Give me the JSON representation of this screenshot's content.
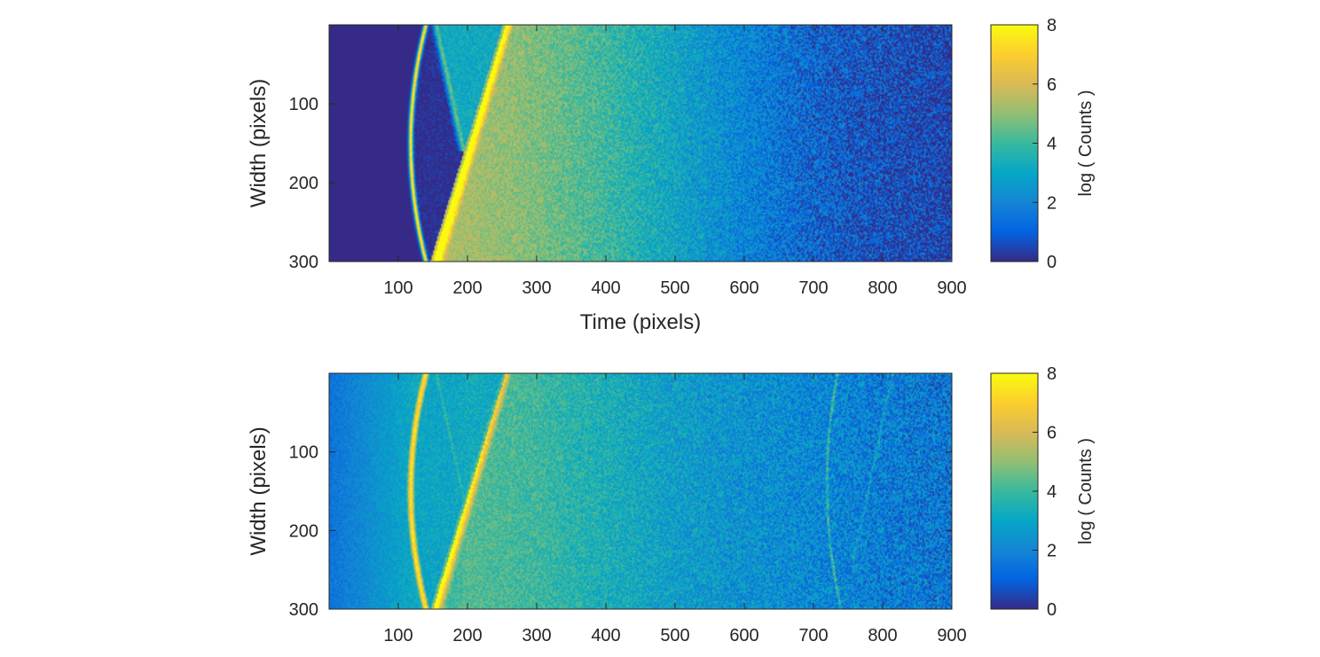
{
  "chart_data": [
    {
      "type": "heatmap",
      "title": "",
      "xlabel": "Time (pixels)",
      "ylabel": "Width (pixels)",
      "xlim": [
        0,
        900
      ],
      "ylim": [
        0,
        300
      ],
      "y_reversed": true,
      "xticks": [
        100,
        200,
        300,
        400,
        500,
        600,
        700,
        800,
        900
      ],
      "yticks": [
        100,
        200,
        300
      ],
      "colorbar": {
        "label": "log ( Counts )",
        "range": [
          0,
          8
        ],
        "ticks": [
          0,
          2,
          4,
          6,
          8
        ],
        "colormap": "parula"
      },
      "features": {
        "background_left_of_x": 120,
        "background_level": 0,
        "primary_arc": {
          "x_top": 140,
          "x_mid": 118,
          "x_bottom": 140,
          "level": 8
        },
        "rising_front": {
          "x_at_y300": 150,
          "x_at_y0": 255,
          "level": 6.3
        },
        "secondary_front": {
          "x_at_y0": 270,
          "x_at_y300": 255,
          "level": 5.2
        },
        "falling_diagonal": {
          "x_at_y0": 155,
          "x_at_y160": 195,
          "level": 4.5
        },
        "decay_levels": [
          {
            "x": 200,
            "level": 5.3
          },
          {
            "x": 300,
            "level": 4.8
          },
          {
            "x": 400,
            "level": 4.0
          },
          {
            "x": 500,
            "level": 3.0
          },
          {
            "x": 600,
            "level": 2.0
          },
          {
            "x": 700,
            "level": 1.2
          },
          {
            "x": 800,
            "level": 0.7
          },
          {
            "x": 900,
            "level": 0.4
          }
        ]
      }
    },
    {
      "type": "heatmap",
      "title": "",
      "xlabel": "",
      "ylabel": "Width (pixels)",
      "xlim": [
        0,
        900
      ],
      "ylim": [
        0,
        300
      ],
      "y_reversed": true,
      "xticks": [
        100,
        200,
        300,
        400,
        500,
        600,
        700,
        800,
        900
      ],
      "yticks": [
        100,
        200,
        300
      ],
      "colorbar": {
        "label": "log ( Counts )",
        "range": [
          0,
          8
        ],
        "ticks": [
          0,
          2,
          4,
          6,
          8
        ],
        "colormap": "parula"
      },
      "features": {
        "background_level": 1.5,
        "primary_arc": {
          "x_top": 140,
          "x_mid": 118,
          "x_bottom": 140,
          "level": 7.5
        },
        "rising_front": {
          "x_at_y300": 150,
          "x_at_y0": 255,
          "level": 5.0
        },
        "secondary_front": {
          "x_at_y0": 270,
          "x_at_y300": 255,
          "level": 4.3
        },
        "falling_diagonal": {
          "x_at_y0": 155,
          "x_at_y160": 195,
          "level": 3.8
        },
        "echo_arc": {
          "x_top": 735,
          "x_bottom": 740,
          "level": 4.0
        },
        "echo_front": {
          "x_at_y250": 755,
          "x_at_y0": 815,
          "level": 2.8
        },
        "decay_levels": [
          {
            "x": 0,
            "level": 1.5
          },
          {
            "x": 150,
            "level": 3.5
          },
          {
            "x": 200,
            "level": 4.3
          },
          {
            "x": 300,
            "level": 4.0
          },
          {
            "x": 400,
            "level": 3.4
          },
          {
            "x": 500,
            "level": 2.8
          },
          {
            "x": 600,
            "level": 2.4
          },
          {
            "x": 700,
            "level": 2.1
          },
          {
            "x": 800,
            "level": 1.8
          },
          {
            "x": 900,
            "level": 1.6
          }
        ]
      }
    }
  ]
}
